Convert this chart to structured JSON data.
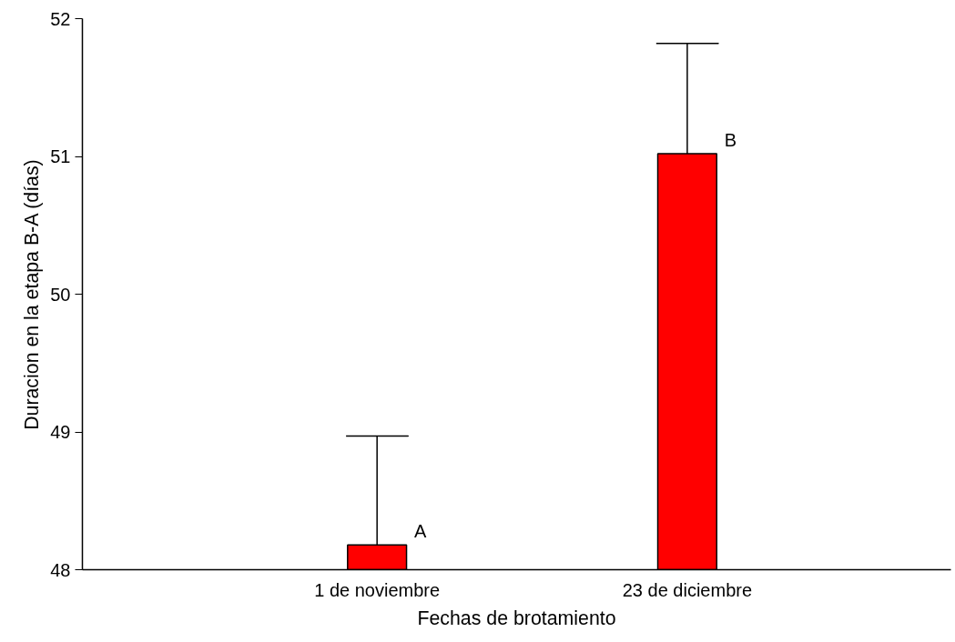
{
  "chart_data": {
    "type": "bar",
    "xlabel": "Fechas de brotamiento",
    "ylabel": "Duracion en la etapa B-A (días)",
    "categories": [
      "1 de noviembre",
      "23 de diciembre"
    ],
    "values": [
      48.18,
      51.02
    ],
    "errors": [
      [
        48.18,
        48.97
      ],
      [
        51.02,
        51.82
      ]
    ],
    "color": "#ff0000",
    "ylim": [
      48,
      52
    ],
    "yticks": [
      48,
      49,
      50,
      51,
      52
    ],
    "grid": false,
    "annotations": [
      {
        "text": "A",
        "x": "1 de noviembre",
        "y": 48.18
      },
      {
        "text": "B",
        "x": "23 de diciembre",
        "y": 51.02
      }
    ]
  }
}
